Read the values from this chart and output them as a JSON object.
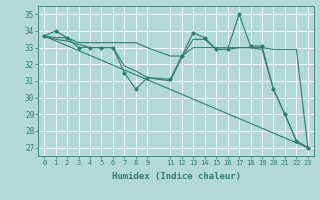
{
  "xlabel": "Humidex (Indice chaleur)",
  "background_color": "#b2d8d8",
  "grid_color": "#ffffff",
  "line_color": "#2e7d6e",
  "xlim": [
    -0.5,
    23.5
  ],
  "ylim": [
    26.5,
    35.5
  ],
  "yticks": [
    27,
    28,
    29,
    30,
    31,
    32,
    33,
    34,
    35
  ],
  "xticks": [
    0,
    1,
    2,
    3,
    4,
    5,
    6,
    7,
    8,
    9,
    11,
    12,
    13,
    14,
    15,
    16,
    17,
    18,
    19,
    20,
    21,
    22,
    23
  ],
  "xtick_labels": [
    "0",
    "1",
    "2",
    "3",
    "4",
    "5",
    "6",
    "7",
    "8",
    "9",
    "11",
    "12",
    "13",
    "14",
    "15",
    "16",
    "17",
    "18",
    "19",
    "20",
    "21",
    "22",
    "23"
  ],
  "series": [
    {
      "x": [
        0,
        1,
        2,
        3,
        4,
        5,
        6,
        7,
        8,
        9,
        11,
        12,
        13,
        14,
        15,
        16,
        17,
        18,
        19,
        20,
        21,
        22,
        23
      ],
      "y": [
        33.7,
        34.0,
        33.6,
        33.0,
        33.0,
        33.0,
        33.0,
        31.5,
        30.5,
        31.2,
        31.1,
        32.5,
        33.9,
        33.6,
        32.9,
        32.9,
        35.0,
        33.1,
        33.1,
        30.5,
        29.0,
        27.4,
        27.0
      ],
      "marker": true
    },
    {
      "x": [
        0,
        1,
        2,
        3,
        4,
        5,
        6,
        7,
        8,
        9,
        11,
        12,
        13,
        14,
        15,
        16,
        17,
        18,
        19,
        20,
        21,
        22,
        23
      ],
      "y": [
        33.7,
        33.6,
        33.6,
        33.3,
        33.3,
        33.3,
        33.3,
        33.3,
        33.3,
        33.0,
        32.5,
        32.5,
        33.0,
        33.0,
        33.0,
        33.0,
        33.0,
        33.0,
        33.0,
        32.9,
        32.9,
        32.9,
        27.0
      ],
      "marker": false
    },
    {
      "x": [
        0,
        23
      ],
      "y": [
        33.7,
        27.0
      ],
      "marker": false
    },
    {
      "x": [
        0,
        1,
        2,
        3,
        4,
        5,
        6,
        7,
        8,
        9,
        11,
        12,
        13,
        14,
        15,
        16,
        17,
        18,
        19,
        20,
        21,
        22,
        23
      ],
      "y": [
        33.7,
        33.5,
        33.4,
        33.2,
        33.0,
        33.0,
        33.0,
        31.9,
        31.6,
        31.2,
        31.0,
        32.4,
        33.5,
        33.5,
        32.9,
        32.9,
        33.0,
        33.0,
        32.9,
        30.5,
        29.0,
        27.4,
        27.0
      ],
      "marker": false
    }
  ]
}
